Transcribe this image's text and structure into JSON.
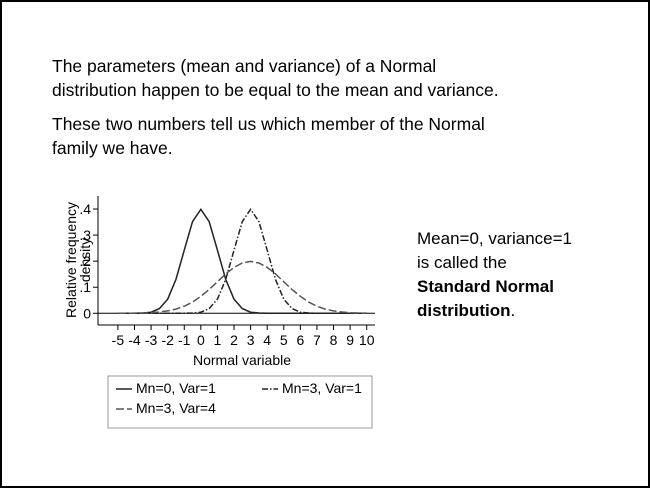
{
  "slide": {
    "paragraphs": [
      [
        "The parameters (mean and variance) of a Normal",
        "distribution happen to be equal to the mean and variance."
      ],
      [
        "These two numbers tell us which member of the Normal",
        "family we have."
      ]
    ],
    "side_text": {
      "lines": [
        "Mean=0, variance=1",
        "is called the"
      ],
      "bold": [
        "Standard Normal",
        "distribution"
      ],
      "tail": "."
    }
  },
  "chart_data": {
    "type": "line",
    "xlabel": "Normal variable",
    "ylabel": [
      "Relative frequency",
      "density"
    ],
    "x": [
      -5,
      -4.5,
      -4,
      -3.5,
      -3,
      -2.5,
      -2,
      -1.5,
      -1,
      -0.5,
      0,
      0.5,
      1,
      1.5,
      2,
      2.5,
      3,
      3.5,
      4,
      4.5,
      5,
      5.5,
      6,
      6.5,
      7,
      7.5,
      8,
      8.5,
      9,
      9.5,
      10
    ],
    "series": [
      {
        "name": "Mn=0, Var=1",
        "color": "#222222",
        "dash": "solid",
        "values": [
          0,
          0,
          0.0001,
          0.001,
          0.004,
          0.018,
          0.054,
          0.13,
          0.242,
          0.352,
          0.399,
          0.352,
          0.242,
          0.13,
          0.054,
          0.018,
          0.004,
          0.001,
          0.0001,
          0,
          0,
          0,
          0,
          0,
          0,
          0,
          0,
          0,
          0,
          0,
          0
        ]
      },
      {
        "name": "Mn=3, Var=1",
        "color": "#222222",
        "dash": "dash-dot",
        "values": [
          0,
          0,
          0,
          0,
          0,
          0,
          0,
          0,
          0.0001,
          0.001,
          0.004,
          0.018,
          0.054,
          0.13,
          0.242,
          0.352,
          0.399,
          0.352,
          0.242,
          0.13,
          0.054,
          0.018,
          0.004,
          0.001,
          0.0001,
          0,
          0,
          0,
          0,
          0,
          0
        ]
      },
      {
        "name": "Mn=3, Var=4",
        "color": "#555555",
        "dash": "dash",
        "values": [
          0.0001,
          0.0002,
          0.0004,
          0.001,
          0.002,
          0.005,
          0.009,
          0.016,
          0.027,
          0.043,
          0.065,
          0.091,
          0.121,
          0.151,
          0.176,
          0.193,
          0.199,
          0.193,
          0.176,
          0.151,
          0.121,
          0.091,
          0.065,
          0.043,
          0.027,
          0.016,
          0.009,
          0.005,
          0.002,
          0.001,
          0.0004
        ]
      }
    ],
    "xlim": [
      -6.2,
      10.5
    ],
    "xticks": [
      -5,
      -4,
      -3,
      -2,
      -1,
      0,
      1,
      2,
      3,
      4,
      5,
      6,
      7,
      8,
      9,
      10
    ],
    "ylim": [
      -0.045,
      0.45
    ],
    "yticks": [
      0,
      {
        "value": 0.1,
        "label": ".1"
      },
      {
        "value": 0.2,
        "label": ".2"
      },
      {
        "value": 0.3,
        "label": ".3"
      },
      {
        "value": 0.4,
        "label": ".4"
      }
    ]
  }
}
